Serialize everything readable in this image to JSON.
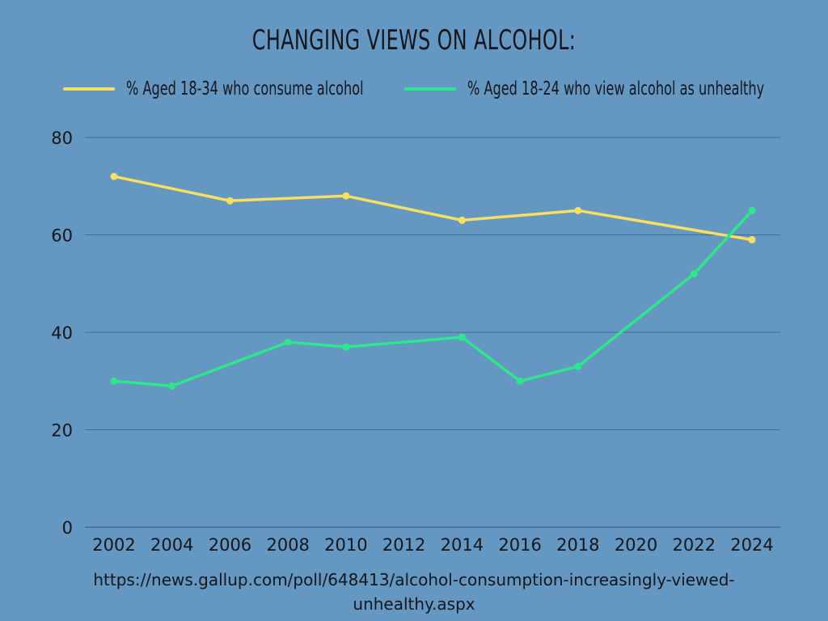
{
  "chart_data": {
    "type": "line",
    "title": "CHANGING VIEWS ON ALCOHOL:",
    "x": [
      2002,
      2004,
      2006,
      2008,
      2010,
      2012,
      2014,
      2016,
      2018,
      2020,
      2022,
      2024
    ],
    "x_tick_labels": [
      "2002",
      "2004",
      "2006",
      "2008",
      "2010",
      "2012",
      "2014",
      "2016",
      "2018",
      "2020",
      "2022",
      "2024"
    ],
    "ylim": [
      0,
      80
    ],
    "y_ticks": [
      0,
      20,
      40,
      60,
      80
    ],
    "y_tick_labels": [
      "0",
      "20",
      "40",
      "60",
      "80"
    ],
    "grid": true,
    "legend_position": "top",
    "series": [
      {
        "name": "% Aged 18-34 who consume alcohol",
        "color": "#f7df62",
        "points": [
          [
            2002,
            72
          ],
          [
            2006,
            67
          ],
          [
            2010,
            68
          ],
          [
            2014,
            63
          ],
          [
            2018,
            65
          ],
          [
            2024,
            59
          ]
        ]
      },
      {
        "name": "% Aged 18-24 who view alcohol as unhealthy",
        "color": "#2ee68b",
        "points": [
          [
            2002,
            30
          ],
          [
            2004,
            29
          ],
          [
            2008,
            38
          ],
          [
            2010,
            37
          ],
          [
            2014,
            39
          ],
          [
            2016,
            30
          ],
          [
            2018,
            33
          ],
          [
            2022,
            52
          ],
          [
            2024,
            65
          ]
        ]
      }
    ]
  },
  "source": {
    "line1": "https://news.gallup.com/poll/648413/alcohol-consumption-increasingly-viewed-",
    "line2": "unhealthy.aspx"
  },
  "colors": {
    "background": "#6497c1",
    "grid": "#3f6b94",
    "text": "#14161c"
  }
}
